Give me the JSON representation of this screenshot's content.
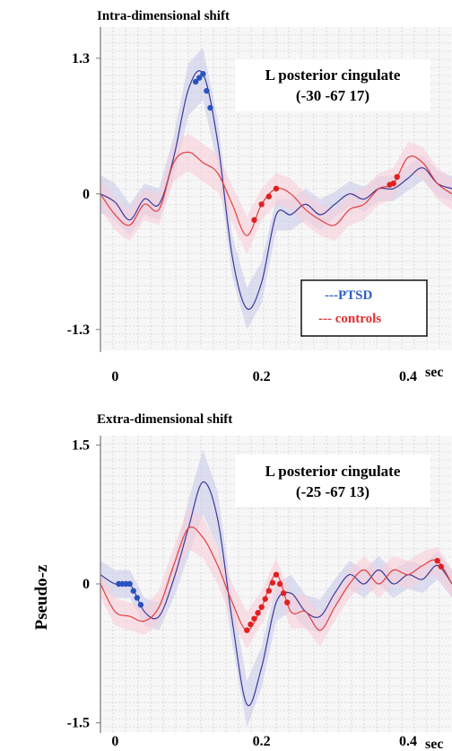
{
  "figure": {
    "ylabel": "Pseudo-z"
  },
  "chart_data": [
    {
      "type": "line",
      "title": "Intra-dimensional shift",
      "annotation_line1": "L posterior cingulate",
      "annotation_line2": "(-30 -67 17)",
      "xlabel": "sec",
      "xlim": [
        -0.02,
        0.46
      ],
      "ylim": [
        -1.5,
        1.6
      ],
      "x_ticks": [
        0,
        0.2,
        0.4
      ],
      "x_tick_labels": [
        "0",
        "0.2",
        "0.4"
      ],
      "y_ticks": [
        -1.3,
        0,
        1.3
      ],
      "y_tick_labels": [
        "-1.3",
        "0",
        "1.3"
      ],
      "grid": true,
      "legend": {
        "position": "bottom-right",
        "entries": [
          "---PTSD",
          "--- controls"
        ]
      },
      "series": [
        {
          "name": "PTSD",
          "color": "#3a3a9a",
          "band_color": "#c9cbe9",
          "x": [
            -0.02,
            0.0,
            0.02,
            0.04,
            0.06,
            0.08,
            0.1,
            0.12,
            0.14,
            0.16,
            0.18,
            0.2,
            0.22,
            0.24,
            0.26,
            0.28,
            0.3,
            0.32,
            0.34,
            0.36,
            0.38,
            0.4,
            0.42,
            0.44,
            0.46
          ],
          "y": [
            0.0,
            -0.08,
            -0.25,
            -0.05,
            -0.1,
            0.35,
            1.0,
            1.15,
            0.5,
            -0.6,
            -1.1,
            -0.85,
            -0.2,
            -0.2,
            -0.1,
            -0.2,
            -0.1,
            0.0,
            -0.05,
            0.05,
            0.05,
            0.15,
            0.25,
            0.1,
            0.05
          ],
          "band": [
            0.18,
            0.18,
            0.15,
            0.15,
            0.15,
            0.2,
            0.25,
            0.25,
            0.22,
            0.2,
            0.2,
            0.2,
            0.15,
            0.15,
            0.15,
            0.15,
            0.12,
            0.12,
            0.12,
            0.12,
            0.12,
            0.12,
            0.12,
            0.12,
            0.12
          ],
          "significant_x": [
            0.11,
            0.115,
            0.12,
            0.125,
            0.13
          ]
        },
        {
          "name": "controls",
          "color": "#e24040",
          "band_color": "#f8cfd8",
          "x": [
            -0.02,
            0.0,
            0.02,
            0.04,
            0.06,
            0.08,
            0.1,
            0.12,
            0.14,
            0.16,
            0.18,
            0.2,
            0.22,
            0.24,
            0.26,
            0.28,
            0.3,
            0.32,
            0.34,
            0.36,
            0.38,
            0.4,
            0.42,
            0.44,
            0.46
          ],
          "y": [
            0.0,
            -0.2,
            -0.3,
            -0.1,
            -0.15,
            0.3,
            0.4,
            0.3,
            0.2,
            -0.1,
            -0.4,
            -0.1,
            0.05,
            0.0,
            -0.15,
            -0.25,
            -0.3,
            -0.15,
            -0.1,
            0.05,
            0.1,
            0.35,
            0.3,
            0.1,
            0.0
          ],
          "band": [
            0.15,
            0.15,
            0.15,
            0.15,
            0.15,
            0.18,
            0.18,
            0.18,
            0.18,
            0.18,
            0.18,
            0.15,
            0.15,
            0.15,
            0.15,
            0.15,
            0.15,
            0.15,
            0.15,
            0.15,
            0.15,
            0.15,
            0.15,
            0.15,
            0.15
          ],
          "significant_x": [
            0.19,
            0.2,
            0.21,
            0.22,
            0.375,
            0.38,
            0.385
          ]
        }
      ]
    },
    {
      "type": "line",
      "title": "Extra-dimensional shift",
      "annotation_line1": "L posterior cingulate",
      "annotation_line2": "(-25 -67 13)",
      "xlabel": "sec",
      "xlim": [
        -0.02,
        0.46
      ],
      "ylim": [
        -1.6,
        1.6
      ],
      "x_ticks": [
        0,
        0.2,
        0.4
      ],
      "x_tick_labels": [
        "0",
        "0.2",
        "0.4"
      ],
      "y_ticks": [
        -1.5,
        0,
        1.5
      ],
      "y_tick_labels": [
        "-1.5",
        "0",
        "1.5"
      ],
      "grid": true,
      "series": [
        {
          "name": "PTSD",
          "color": "#3a3a9a",
          "band_color": "#c9cbe9",
          "x": [
            -0.02,
            0.0,
            0.02,
            0.04,
            0.06,
            0.08,
            0.1,
            0.12,
            0.14,
            0.16,
            0.18,
            0.2,
            0.22,
            0.24,
            0.26,
            0.28,
            0.3,
            0.32,
            0.34,
            0.36,
            0.38,
            0.4,
            0.42,
            0.44,
            0.46
          ],
          "y": [
            0.1,
            0.0,
            0.0,
            -0.3,
            -0.35,
            0.05,
            0.6,
            1.1,
            0.7,
            -0.4,
            -1.3,
            -0.9,
            -0.2,
            -0.1,
            -0.3,
            -0.35,
            -0.1,
            0.1,
            0.0,
            0.15,
            0.0,
            0.1,
            0.05,
            0.2,
            0.0
          ],
          "band": [
            0.15,
            0.15,
            0.15,
            0.15,
            0.15,
            0.2,
            0.3,
            0.35,
            0.3,
            0.25,
            0.25,
            0.22,
            0.2,
            0.2,
            0.18,
            0.18,
            0.15,
            0.15,
            0.15,
            0.15,
            0.15,
            0.15,
            0.15,
            0.15,
            0.15
          ],
          "significant_x": [
            0.005,
            0.01,
            0.015,
            0.02,
            0.025,
            0.03,
            0.035
          ]
        },
        {
          "name": "controls",
          "color": "#e24040",
          "band_color": "#f8cfd8",
          "x": [
            -0.02,
            0.0,
            0.02,
            0.04,
            0.06,
            0.08,
            0.1,
            0.12,
            0.14,
            0.16,
            0.18,
            0.2,
            0.22,
            0.24,
            0.26,
            0.28,
            0.3,
            0.32,
            0.34,
            0.36,
            0.38,
            0.4,
            0.42,
            0.44,
            0.46
          ],
          "y": [
            0.0,
            -0.3,
            -0.35,
            -0.4,
            -0.25,
            0.2,
            0.6,
            0.5,
            0.2,
            -0.2,
            -0.5,
            -0.25,
            0.1,
            -0.3,
            -0.3,
            -0.5,
            -0.25,
            0.0,
            0.15,
            0.0,
            0.15,
            0.1,
            0.2,
            0.25,
            0.0
          ],
          "band": [
            0.15,
            0.15,
            0.15,
            0.15,
            0.18,
            0.2,
            0.22,
            0.22,
            0.2,
            0.2,
            0.2,
            0.18,
            0.18,
            0.18,
            0.18,
            0.18,
            0.15,
            0.15,
            0.15,
            0.15,
            0.15,
            0.15,
            0.15,
            0.15,
            0.15
          ],
          "significant_x": [
            0.18,
            0.185,
            0.19,
            0.195,
            0.2,
            0.205,
            0.21,
            0.215,
            0.22,
            0.225,
            0.23,
            0.235,
            0.44,
            0.445
          ]
        }
      ]
    }
  ]
}
